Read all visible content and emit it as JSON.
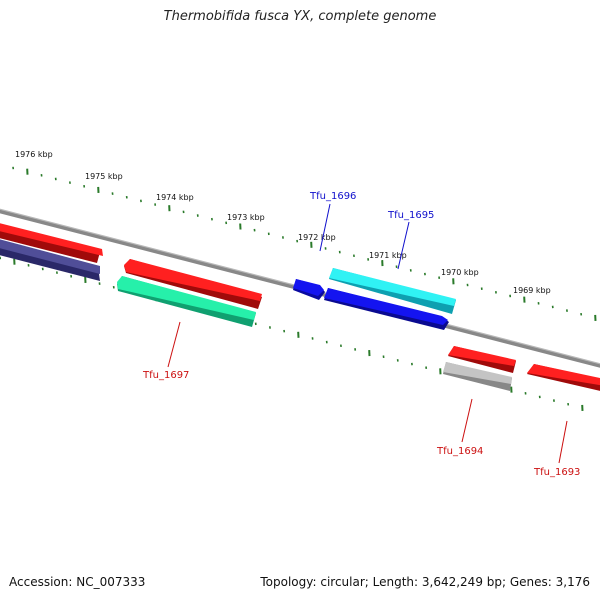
{
  "title": "Thermobifida fusca YX, complete genome",
  "footer": {
    "accession": "Accession: NC_007333",
    "summary": "Topology: circular; Length: 3,642,249 bp; Genes: 3,176"
  },
  "ruler": {
    "color": "#2a7a2a",
    "labels": [
      "1976 kbp",
      "1975 kbp",
      "1974 kbp",
      "1973 kbp",
      "1972 kbp",
      "1971 kbp",
      "1970 kbp",
      "1969 kbp"
    ]
  },
  "genes": [
    {
      "id": "g-top-left-red",
      "color": "#ff1a1a",
      "label": ""
    },
    {
      "id": "g-left-navy",
      "color": "#4a4890",
      "label": ""
    },
    {
      "id": "tfu_1697-red",
      "color": "#ff1a1a",
      "label": ""
    },
    {
      "id": "tfu_1697",
      "color": "#1ee8a0",
      "label": "Tfu_1697"
    },
    {
      "id": "tfu_1696",
      "color": "#1010ee",
      "label": "Tfu_1696"
    },
    {
      "id": "tfu_1695",
      "color": "#22eef0",
      "label": "Tfu_1695"
    },
    {
      "id": "g-blue-long",
      "color": "#1010ee",
      "label": ""
    },
    {
      "id": "g-red-1694",
      "color": "#ff1a1a",
      "label": ""
    },
    {
      "id": "tfu_1694",
      "color": "#b8b8b8",
      "label": "Tfu_1694"
    },
    {
      "id": "tfu_1693",
      "color": "#ff1a1a",
      "label": "Tfu_1693"
    }
  ],
  "label_colors": {
    "forward": "#1010cc",
    "reverse": "#cc1010"
  }
}
